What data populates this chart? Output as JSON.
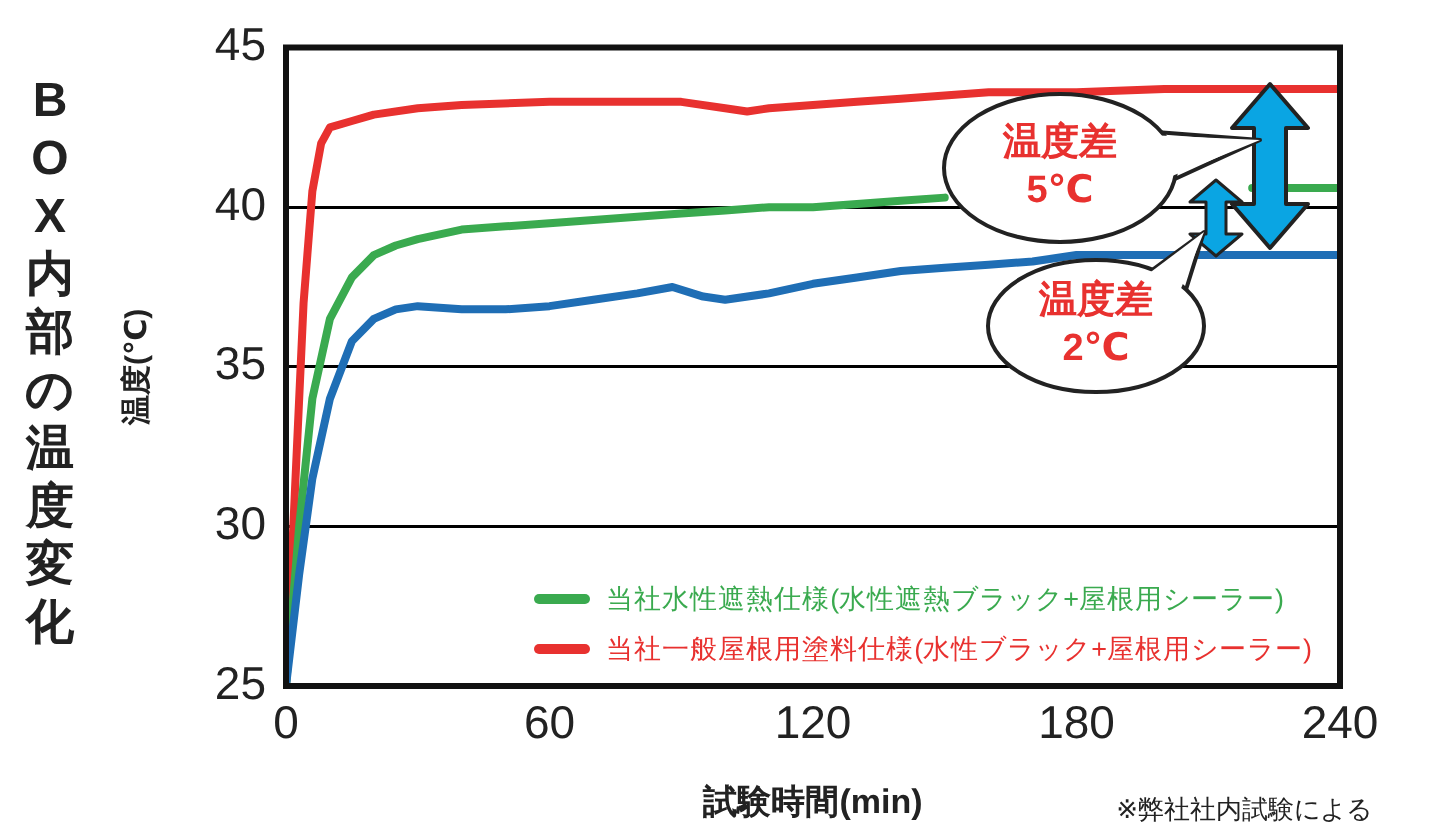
{
  "chart_data": {
    "type": "line",
    "title": "BOX内部の温度変化",
    "xlabel": "試験時間(min)",
    "ylabel": "温度(℃)",
    "xlim": [
      0,
      240
    ],
    "xticks": [
      0,
      60,
      120,
      180,
      240
    ],
    "ylim": [
      25,
      45
    ],
    "yticks": [
      25,
      30,
      35,
      40,
      45
    ],
    "grid": "y",
    "legend": "bottom right",
    "marker": "none",
    "line_style": "solid",
    "series": [
      {
        "color": "#1f6eb5",
        "x": [
          0,
          3,
          6,
          10,
          15,
          20,
          25,
          30,
          40,
          50,
          60,
          70,
          80,
          88,
          95,
          100,
          110,
          120,
          130,
          140,
          150,
          160,
          170,
          180,
          190,
          200,
          210,
          220,
          230,
          240
        ],
        "values": [
          25,
          28.5,
          31.5,
          34,
          35.8,
          36.5,
          36.8,
          36.9,
          36.8,
          36.8,
          36.9,
          37.1,
          37.3,
          37.5,
          37.2,
          37.1,
          37.3,
          37.6,
          37.8,
          38.0,
          38.1,
          38.2,
          38.3,
          38.5,
          38.5,
          38.5,
          38.5,
          38.5,
          38.5,
          38.5
        ]
      },
      {
        "name": "当社水性遮熱仕様(水性遮熱ブラック+屋根用シーラー)",
        "color": "#3aaa4f",
        "x": [
          0,
          3,
          6,
          10,
          15,
          20,
          25,
          30,
          40,
          50,
          60,
          70,
          80,
          90,
          100,
          110,
          120,
          130,
          140,
          150,
          160,
          170,
          180,
          190,
          200,
          210,
          220,
          230,
          240
        ],
        "values": [
          25,
          30,
          34,
          36.5,
          37.8,
          38.5,
          38.8,
          39.0,
          39.3,
          39.4,
          39.5,
          39.6,
          39.7,
          39.8,
          39.9,
          40.0,
          40.0,
          40.1,
          40.2,
          40.3,
          null,
          null,
          null,
          null,
          null,
          null,
          40.6,
          40.6,
          40.6
        ]
      },
      {
        "name": "当社一般屋根用塗料仕様(水性ブラック+屋根用シーラー)",
        "color": "#e8312f",
        "x": [
          0,
          2,
          4,
          6,
          8,
          10,
          15,
          20,
          30,
          40,
          60,
          80,
          90,
          100,
          105,
          110,
          120,
          130,
          140,
          150,
          160,
          180,
          200,
          220,
          240
        ],
        "values": [
          25,
          31,
          37,
          40.5,
          42,
          42.5,
          42.7,
          42.9,
          43.1,
          43.2,
          43.3,
          43.3,
          43.3,
          43.1,
          43.0,
          43.1,
          43.2,
          43.3,
          43.4,
          43.5,
          43.6,
          43.6,
          43.7,
          43.7,
          43.7
        ]
      }
    ],
    "annotations": [
      "温度差\n5℃",
      "温度差\n2℃",
      "※弊社社内試験による"
    ]
  }
}
